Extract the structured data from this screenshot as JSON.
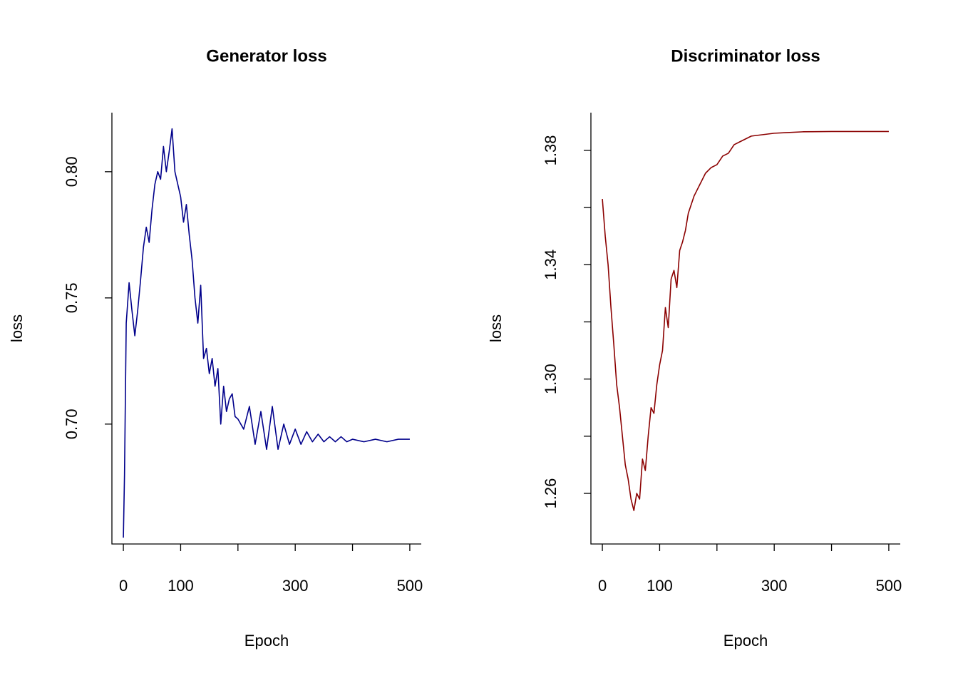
{
  "chart_data": [
    {
      "type": "line",
      "title": "Generator loss",
      "xlabel": "Epoch",
      "ylabel": "loss",
      "x": [
        0,
        2,
        5,
        10,
        15,
        20,
        25,
        30,
        35,
        40,
        45,
        50,
        55,
        60,
        65,
        70,
        75,
        80,
        85,
        90,
        95,
        100,
        105,
        110,
        115,
        120,
        125,
        130,
        135,
        140,
        145,
        150,
        155,
        160,
        165,
        170,
        175,
        180,
        185,
        190,
        195,
        200,
        210,
        220,
        230,
        240,
        250,
        260,
        270,
        280,
        290,
        300,
        310,
        320,
        330,
        340,
        350,
        360,
        370,
        380,
        390,
        400,
        420,
        440,
        460,
        480,
        500
      ],
      "series": [
        {
          "name": "loss",
          "color": "#00008b",
          "values": [
            0.655,
            0.68,
            0.74,
            0.756,
            0.745,
            0.735,
            0.745,
            0.757,
            0.77,
            0.778,
            0.772,
            0.785,
            0.795,
            0.8,
            0.797,
            0.81,
            0.8,
            0.808,
            0.817,
            0.8,
            0.795,
            0.79,
            0.78,
            0.787,
            0.775,
            0.765,
            0.75,
            0.74,
            0.755,
            0.726,
            0.73,
            0.72,
            0.726,
            0.715,
            0.722,
            0.7,
            0.715,
            0.705,
            0.71,
            0.712,
            0.703,
            0.702,
            0.698,
            0.707,
            0.692,
            0.705,
            0.69,
            0.707,
            0.69,
            0.7,
            0.692,
            0.698,
            0.692,
            0.697,
            0.693,
            0.696,
            0.693,
            0.695,
            0.693,
            0.695,
            0.693,
            0.694,
            0.693,
            0.694,
            0.693,
            0.694,
            0.694
          ]
        }
      ],
      "xlim": [
        -20,
        520
      ],
      "ylim": [
        0.6525,
        0.8234
      ],
      "xticks": [
        0,
        100,
        300,
        500
      ],
      "xticks_unlabeled": [
        200,
        400
      ],
      "yticks": [
        {
          "value": 0.7,
          "label": "0.70"
        },
        {
          "value": 0.75,
          "label": "0.75"
        },
        {
          "value": 0.8,
          "label": "0.80"
        }
      ]
    },
    {
      "type": "line",
      "title": "Discriminator loss",
      "xlabel": "Epoch",
      "ylabel": "loss",
      "x": [
        0,
        5,
        10,
        15,
        20,
        25,
        30,
        35,
        40,
        45,
        50,
        55,
        60,
        65,
        70,
        75,
        80,
        85,
        90,
        95,
        100,
        105,
        110,
        115,
        120,
        125,
        130,
        135,
        140,
        145,
        150,
        160,
        170,
        180,
        190,
        200,
        210,
        220,
        230,
        240,
        250,
        260,
        280,
        300,
        320,
        350,
        400,
        450,
        500
      ],
      "series": [
        {
          "name": "loss",
          "color": "#8b0000",
          "values": [
            1.363,
            1.35,
            1.34,
            1.325,
            1.312,
            1.298,
            1.29,
            1.28,
            1.27,
            1.265,
            1.258,
            1.254,
            1.26,
            1.258,
            1.272,
            1.268,
            1.28,
            1.29,
            1.288,
            1.298,
            1.305,
            1.31,
            1.325,
            1.318,
            1.335,
            1.338,
            1.332,
            1.345,
            1.348,
            1.352,
            1.358,
            1.364,
            1.368,
            1.372,
            1.374,
            1.375,
            1.378,
            1.379,
            1.382,
            1.383,
            1.384,
            1.385,
            1.3855,
            1.386,
            1.3862,
            1.3865,
            1.3866,
            1.3866,
            1.3866
          ]
        }
      ],
      "xlim": [
        -20,
        520
      ],
      "ylim": [
        1.2423,
        1.3932
      ],
      "xticks": [
        0,
        100,
        300,
        500
      ],
      "xticks_unlabeled": [
        200,
        400
      ],
      "yticks": [
        {
          "value": 1.26,
          "label": "1.26"
        },
        {
          "value": 1.3,
          "label": "1.30"
        },
        {
          "value": 1.34,
          "label": "1.34"
        },
        {
          "value": 1.38,
          "label": "1.38"
        }
      ],
      "yticks_unlabeled": [
        1.28,
        1.32,
        1.36
      ]
    }
  ]
}
